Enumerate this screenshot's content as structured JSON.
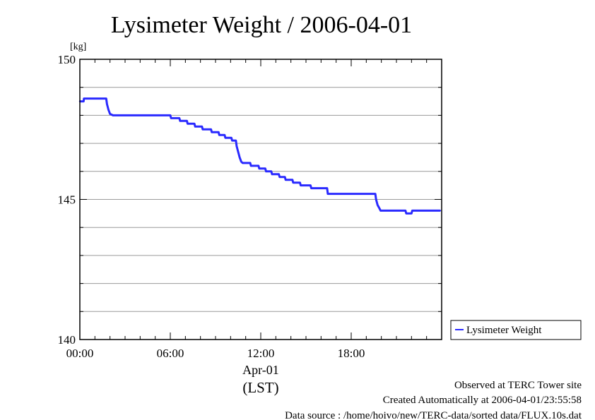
{
  "chart_data": {
    "type": "line",
    "title": "Lysimeter Weight / 2006-04-01",
    "ylabel": "[kg]",
    "xlabel": "(LST)",
    "x_date_label": "Apr-01",
    "x_tick_labels": [
      "00:00",
      "06:00",
      "12:00",
      "18:00"
    ],
    "x_ticks_hours": [
      0,
      6,
      12,
      18
    ],
    "xlim_hours": [
      0,
      24
    ],
    "y_tick_labels": [
      "140",
      "145",
      "150"
    ],
    "ylim": [
      140,
      150
    ],
    "y_major_ticks": [
      140,
      145,
      150
    ],
    "y_grid_step": 1,
    "grid": true,
    "legend_position": "outside-right-bottom",
    "series": [
      {
        "name": "Lysimeter Weight",
        "color": "#2a2aff",
        "x_hours": [
          0.0,
          0.25,
          0.27,
          1.75,
          1.8,
          1.9,
          2.0,
          2.2,
          2.25,
          6.0,
          6.05,
          6.6,
          6.65,
          7.1,
          7.15,
          7.6,
          7.65,
          8.1,
          8.15,
          8.7,
          8.75,
          9.2,
          9.25,
          9.6,
          9.65,
          10.05,
          10.1,
          10.35,
          10.4,
          10.5,
          10.6,
          10.7,
          10.8,
          10.85,
          11.3,
          11.35,
          11.85,
          11.9,
          12.3,
          12.35,
          12.7,
          12.75,
          13.2,
          13.25,
          13.6,
          13.65,
          14.1,
          14.15,
          14.6,
          14.65,
          15.3,
          15.35,
          16.4,
          16.45,
          19.6,
          19.65,
          19.75,
          19.85,
          19.95,
          20.0,
          21.6,
          21.65,
          22.0,
          22.05,
          23.9
        ],
        "y_kg": [
          148.5,
          148.5,
          148.6,
          148.6,
          148.4,
          148.2,
          148.05,
          148.0,
          148.0,
          148.0,
          147.9,
          147.9,
          147.8,
          147.8,
          147.7,
          147.7,
          147.6,
          147.6,
          147.5,
          147.5,
          147.4,
          147.4,
          147.3,
          147.3,
          147.2,
          147.2,
          147.1,
          147.1,
          146.9,
          146.7,
          146.5,
          146.35,
          146.3,
          146.3,
          146.3,
          146.2,
          146.2,
          146.1,
          146.1,
          146.0,
          146.0,
          145.9,
          145.9,
          145.8,
          145.8,
          145.7,
          145.7,
          145.6,
          145.6,
          145.5,
          145.5,
          145.4,
          145.4,
          145.2,
          145.2,
          145.0,
          144.8,
          144.7,
          144.6,
          144.6,
          144.6,
          144.5,
          144.5,
          144.6,
          144.6
        ]
      }
    ]
  },
  "footer": {
    "line1": "Observed at TERC Tower site",
    "line2": "Created Automatically at 2006-04-01/23:55:58",
    "line3": "Data source : /home/hoivo/new/TERC-data/sorted  data/FLUX.10s.dat"
  }
}
